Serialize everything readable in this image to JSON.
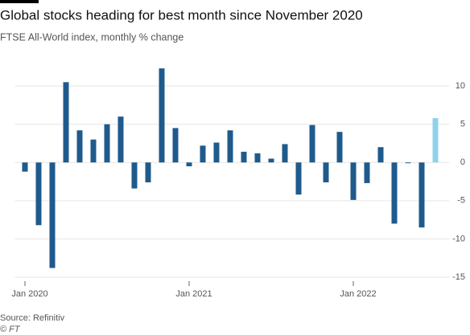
{
  "chart_data": {
    "type": "bar",
    "title": "Global stocks heading for best month since November 2020",
    "subtitle": "FTSE All-World index, monthly % change",
    "source": "Source: Refinitiv",
    "credit": "© FT",
    "categories": [
      "Jan 2020",
      null,
      null,
      null,
      null,
      null,
      null,
      null,
      null,
      null,
      null,
      null,
      "Jan 2021",
      null,
      null,
      null,
      null,
      null,
      null,
      null,
      null,
      null,
      null,
      null,
      "Jan 2022",
      null,
      null,
      null,
      null,
      null,
      null
    ],
    "values": [
      -1.2,
      -8.2,
      -13.8,
      10.5,
      4.2,
      3.0,
      5.0,
      6.0,
      -3.4,
      -2.6,
      12.3,
      4.5,
      -0.5,
      2.2,
      2.6,
      4.2,
      1.4,
      1.2,
      0.5,
      2.4,
      -4.2,
      4.9,
      -2.6,
      4.0,
      -4.9,
      -2.7,
      2.0,
      -8.0,
      -0.1,
      -8.5,
      5.8
    ],
    "colors": [
      "#1f5a8c",
      "#1f5a8c",
      "#1f5a8c",
      "#1f5a8c",
      "#1f5a8c",
      "#1f5a8c",
      "#1f5a8c",
      "#1f5a8c",
      "#1f5a8c",
      "#1f5a8c",
      "#1f5a8c",
      "#1f5a8c",
      "#1f5a8c",
      "#1f5a8c",
      "#1f5a8c",
      "#1f5a8c",
      "#1f5a8c",
      "#1f5a8c",
      "#1f5a8c",
      "#1f5a8c",
      "#1f5a8c",
      "#1f5a8c",
      "#1f5a8c",
      "#1f5a8c",
      "#1f5a8c",
      "#1f5a8c",
      "#1f5a8c",
      "#1f5a8c",
      "#1f5a8c",
      "#1f5a8c",
      "#8fd3ea"
    ],
    "ylim": [
      -15,
      13
    ],
    "yticks": [
      -15,
      -10,
      -5,
      0,
      5,
      10
    ],
    "grid": true
  }
}
